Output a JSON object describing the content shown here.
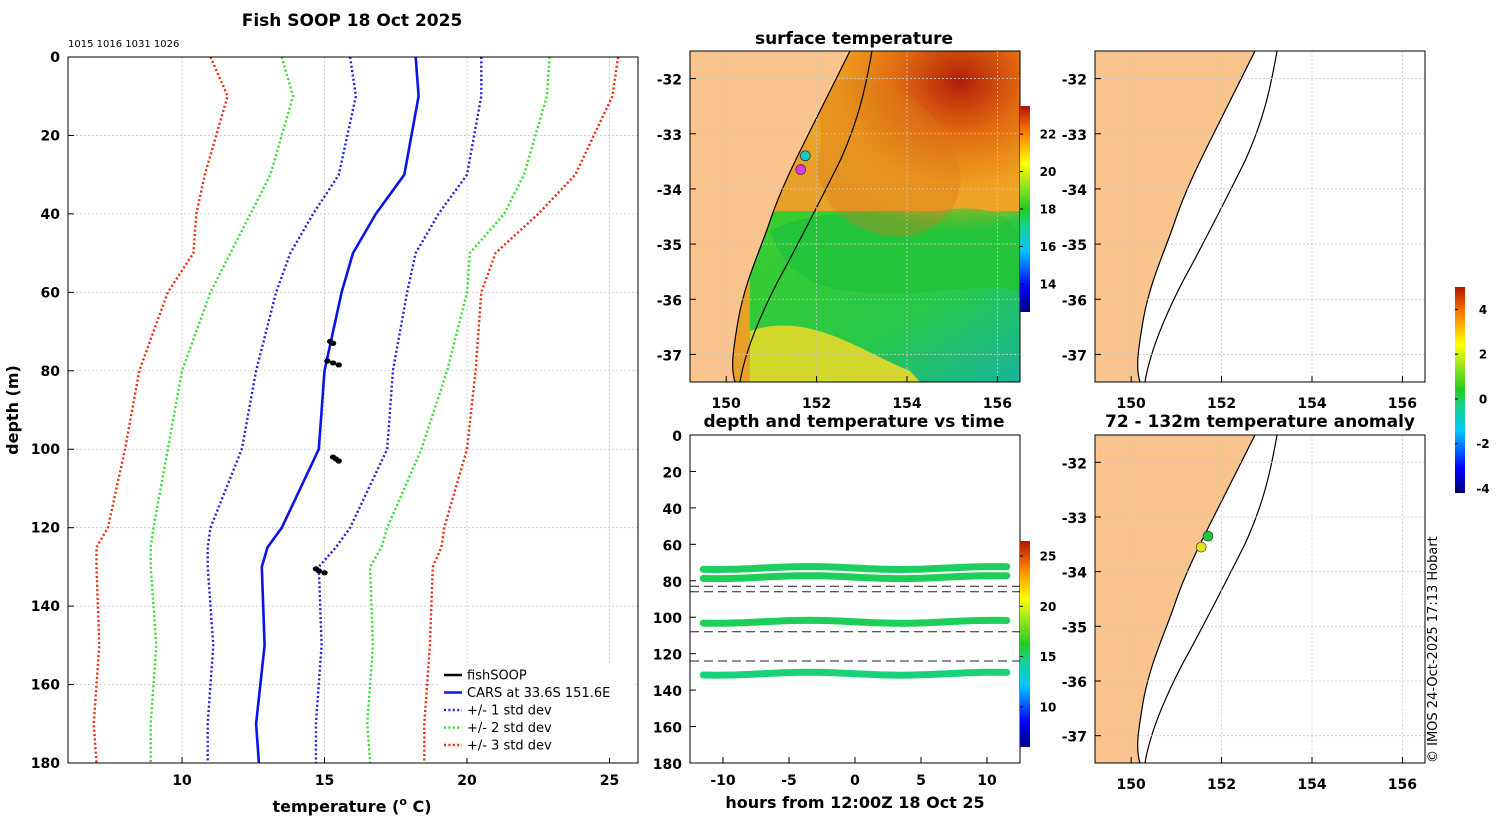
{
  "colors": {
    "cars": "#0a14e6",
    "std1": "#1e1ed6",
    "std2": "#33dd33",
    "std3": "#e62a10",
    "fishsoop": "#000000",
    "land": "#f9c48e",
    "obs_green": "#1ec83c",
    "obs_yellow": "#e6e614",
    "obs_cyan": "#18c8c8",
    "obs_magenta": "#d83ae0"
  },
  "chart_data": [
    {
      "type": "line",
      "id": "profile",
      "title": "Fish SOOP 18 Oct 2025",
      "subtitle": "1015 1016 1031 1026",
      "xlabel": "temperature (",
      "xlabel_sup": "o",
      "xlabel_end": " C)",
      "ylabel": "depth (m)",
      "xlim": [
        6,
        26
      ],
      "ylim": [
        0,
        180
      ],
      "y_inverted": true,
      "xticks": [
        10,
        15,
        20,
        25
      ],
      "yticks": [
        0,
        20,
        40,
        60,
        80,
        100,
        120,
        140,
        160,
        180
      ],
      "grid": true,
      "depths": [
        0,
        10,
        30,
        40,
        50,
        60,
        80,
        100,
        120,
        125,
        130,
        150,
        170,
        180
      ],
      "series": [
        {
          "name": "CARS at 33.6S 151.6E",
          "style": "solid",
          "color_key": "cars",
          "values": [
            18.2,
            18.3,
            17.8,
            16.8,
            16.0,
            15.6,
            15.0,
            14.8,
            13.5,
            13.0,
            12.8,
            12.9,
            12.6,
            12.7
          ]
        },
        {
          "name": "+/- 1 std dev",
          "style": "dotted",
          "color_key": "std1",
          "values": [
            15.9,
            16.1,
            15.5,
            14.6,
            13.8,
            13.3,
            12.6,
            12.1,
            11.0,
            10.9,
            10.9,
            11.1,
            10.9,
            10.9
          ]
        },
        {
          "name": "+/- 1 std dev upper",
          "style": "dotted",
          "color_key": "std1",
          "legend": false,
          "values": [
            20.5,
            20.5,
            20.0,
            19.0,
            18.2,
            17.9,
            17.4,
            17.2,
            15.9,
            15.4,
            14.8,
            14.9,
            14.7,
            14.7
          ]
        },
        {
          "name": "+/- 2 std dev",
          "style": "dotted",
          "color_key": "std2",
          "values": [
            13.5,
            13.9,
            13.1,
            12.4,
            11.7,
            11.0,
            10.0,
            9.5,
            9.0,
            8.9,
            8.9,
            9.1,
            8.9,
            8.9
          ]
        },
        {
          "name": "+/- 2 std dev upper",
          "style": "dotted",
          "color_key": "std2",
          "legend": false,
          "values": [
            22.9,
            22.8,
            22.0,
            21.3,
            20.1,
            20.0,
            19.3,
            18.4,
            17.2,
            17.0,
            16.6,
            16.7,
            16.5,
            16.6
          ]
        },
        {
          "name": "+/- 3 std dev",
          "style": "dotted",
          "color_key": "std3",
          "values": [
            11.0,
            11.6,
            10.8,
            10.5,
            10.4,
            9.5,
            8.5,
            8.0,
            7.4,
            7.0,
            7.0,
            7.1,
            6.9,
            7.0
          ]
        },
        {
          "name": "+/- 3 std dev upper",
          "style": "dotted",
          "color_key": "std3",
          "legend": false,
          "values": [
            25.3,
            25.1,
            23.8,
            22.5,
            21.0,
            20.5,
            20.3,
            20.0,
            19.2,
            19.1,
            18.8,
            18.7,
            18.5,
            18.5
          ]
        }
      ],
      "fishsoop": [
        {
          "t": 15.2,
          "d": 72.5
        },
        {
          "t": 15.3,
          "d": 73.0
        },
        {
          "t": 15.1,
          "d": 77.5
        },
        {
          "t": 15.3,
          "d": 78.0
        },
        {
          "t": 15.5,
          "d": 78.5
        },
        {
          "t": 15.3,
          "d": 102.0
        },
        {
          "t": 15.4,
          "d": 102.5
        },
        {
          "t": 15.5,
          "d": 103.0
        },
        {
          "t": 14.7,
          "d": 130.5
        },
        {
          "t": 14.8,
          "d": 131.0
        },
        {
          "t": 15.0,
          "d": 131.5
        }
      ],
      "legend": {
        "placement": "bottom-right",
        "entries": [
          {
            "label": "fishSOOP",
            "style": "solid",
            "color_key": "fishsoop"
          },
          {
            "label": "CARS at 33.6S 151.6E",
            "style": "solid",
            "color_key": "cars"
          },
          {
            "label": "+/- 1 std dev",
            "style": "dotted",
            "color_key": "std1"
          },
          {
            "label": "+/- 2 std dev",
            "style": "dotted",
            "color_key": "std2"
          },
          {
            "label": "+/- 3 std dev",
            "style": "dotted",
            "color_key": "std3"
          }
        ]
      }
    },
    {
      "type": "heatmap",
      "id": "sst",
      "title": "surface temperature",
      "xlim": [
        149.2,
        156.5
      ],
      "ylim": [
        -37.5,
        -31.5
      ],
      "xticks": [
        150,
        152,
        154,
        156
      ],
      "yticks": [
        -32,
        -33,
        -34,
        -35,
        -36,
        -37
      ],
      "colorbar": {
        "range": [
          12.5,
          23.5
        ],
        "ticks": [
          14,
          16,
          18,
          20,
          22
        ]
      },
      "obs": [
        {
          "lon": 151.75,
          "lat": -33.4,
          "color_key": "obs_cyan"
        },
        {
          "lon": 151.65,
          "lat": -33.65,
          "color_key": "obs_magenta"
        }
      ]
    },
    {
      "type": "heatmap",
      "id": "map_blank",
      "title": "",
      "xlim": [
        149.2,
        156.5
      ],
      "ylim": [
        -37.5,
        -31.5
      ],
      "xticks": [
        150,
        152,
        154,
        156
      ],
      "yticks": [
        -32,
        -33,
        -34,
        -35,
        -36,
        -37
      ],
      "colorbar": {
        "range": [
          -4.2,
          5.0
        ],
        "ticks": [
          -4,
          -2,
          0,
          2,
          4
        ]
      }
    },
    {
      "type": "scatter",
      "id": "depth_time",
      "title": "depth and temperature vs time",
      "xlabel": "hours from 12:00Z 18 Oct 25",
      "xlim": [
        -12.5,
        12.5
      ],
      "ylim": [
        0,
        180
      ],
      "y_inverted": true,
      "xticks": [
        -10,
        -5,
        0,
        5,
        10
      ],
      "yticks": [
        0,
        20,
        40,
        60,
        80,
        100,
        120,
        140,
        160,
        180
      ],
      "tracks": [
        {
          "depth": 73,
          "t_range": [
            -11.5,
            11.5
          ],
          "temp": 15.3
        },
        {
          "depth": 78,
          "t_range": [
            -11.5,
            11.5
          ],
          "temp": 15.4
        },
        {
          "depth": 102.5,
          "t_range": [
            -11.5,
            11.5
          ],
          "temp": 15.4
        },
        {
          "depth": 131,
          "t_range": [
            -11.5,
            11.5
          ],
          "temp": 14.9
        }
      ],
      "dashed_depths": [
        83,
        86,
        108,
        124
      ],
      "colorbar": {
        "range": [
          6.0,
          26.5
        ],
        "ticks": [
          10,
          15,
          20,
          25
        ]
      }
    },
    {
      "type": "heatmap",
      "id": "anomaly",
      "title": "72 - 132m temperature anomaly",
      "xlim": [
        149.2,
        156.5
      ],
      "ylim": [
        -37.5,
        -31.5
      ],
      "xticks": [
        150,
        152,
        154,
        156
      ],
      "yticks": [
        -32,
        -33,
        -34,
        -35,
        -36,
        -37
      ],
      "obs": [
        {
          "lon": 151.7,
          "lat": -33.35,
          "color_key": "obs_green"
        },
        {
          "lon": 151.55,
          "lat": -33.55,
          "color_key": "obs_yellow"
        }
      ]
    }
  ],
  "footer": "© IMOS 24-Oct-2025 17:13 Hobart"
}
